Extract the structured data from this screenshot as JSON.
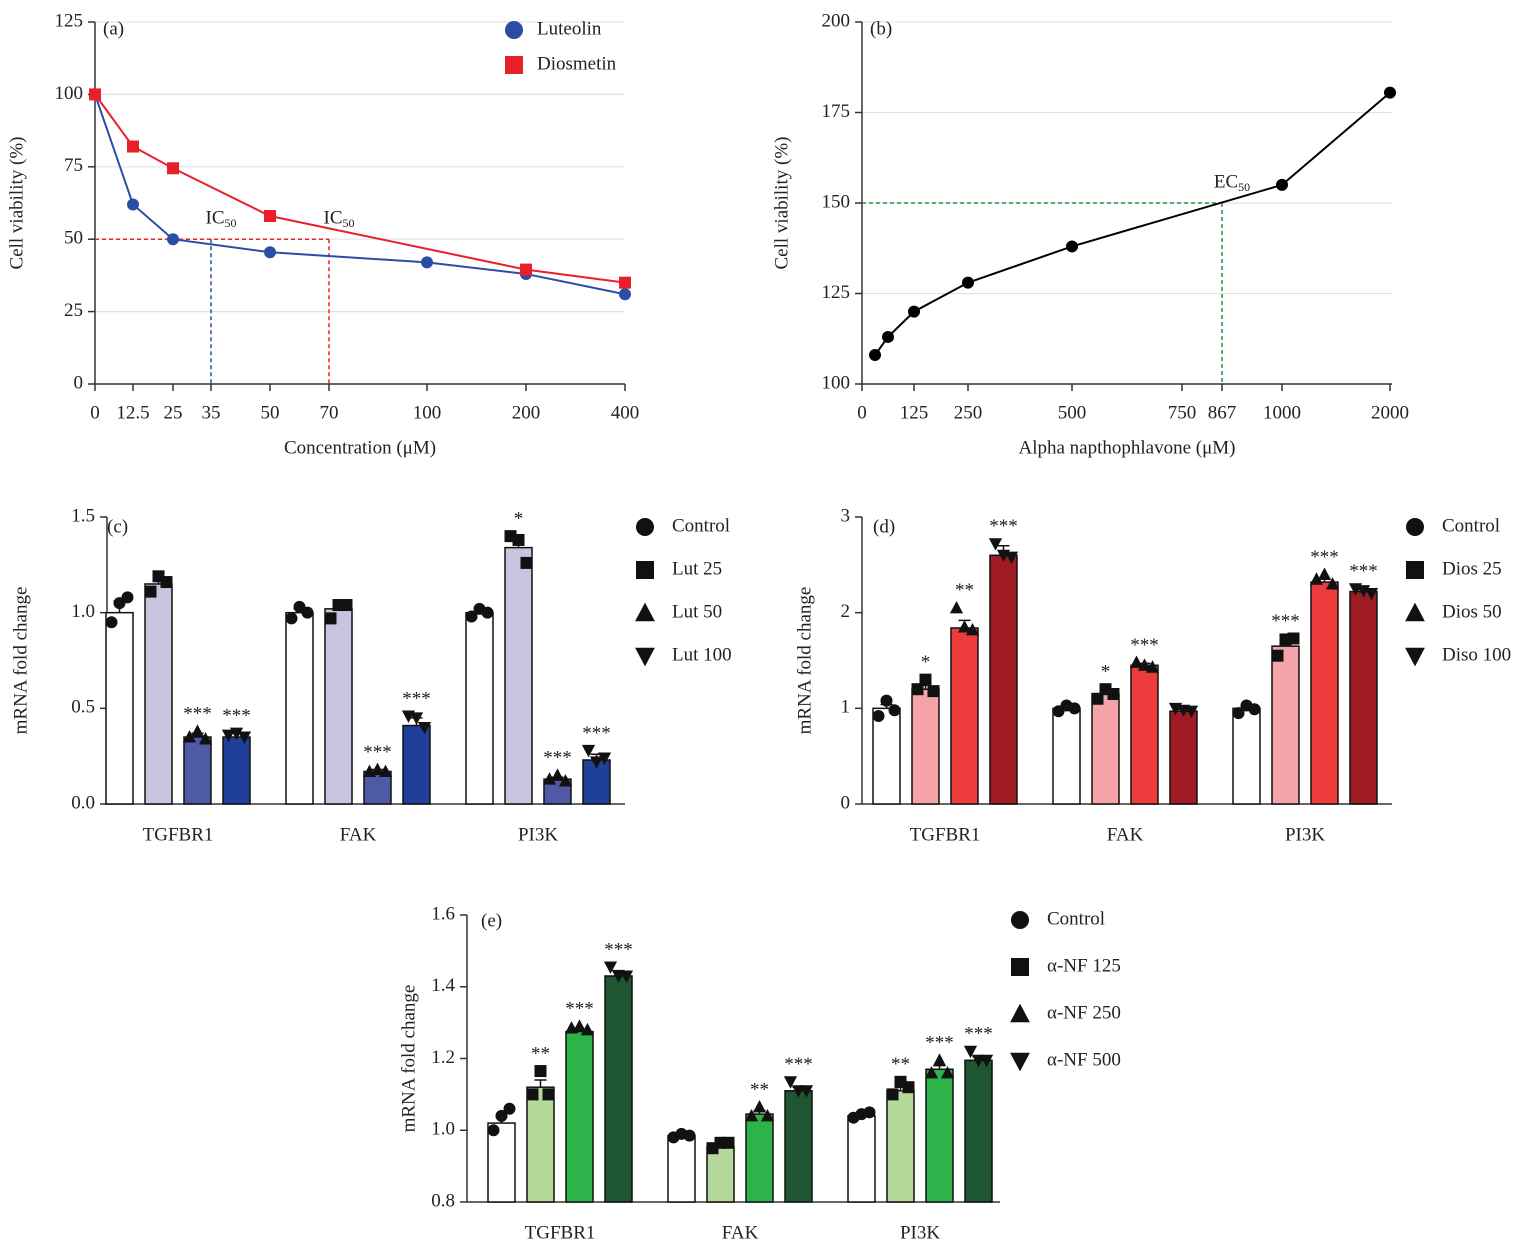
{
  "chart_data": [
    {
      "type": "line",
      "label": "(a)",
      "xlabel": "Concentration (μM)",
      "ylabel": "Cell viability (%)",
      "xlim": [
        0,
        400
      ],
      "xticks": [
        0,
        12.5,
        25,
        35,
        50,
        70,
        100,
        200,
        400
      ],
      "ylim": [
        0,
        125
      ],
      "yticks": [
        0,
        25,
        50,
        75,
        100,
        125
      ],
      "grid": true,
      "legend": "upper right",
      "series": [
        {
          "name": "Luteolin",
          "color": "#2a4ea6",
          "marker": "circle",
          "x": [
            0,
            12.5,
            25,
            50,
            100,
            200,
            400
          ],
          "values": [
            100,
            62,
            50,
            45.5,
            42,
            38,
            31
          ]
        },
        {
          "name": "Diosmetin",
          "color": "#e8202a",
          "marker": "square",
          "x": [
            0,
            12.5,
            25,
            50,
            200,
            400
          ],
          "values": [
            100,
            82,
            74.5,
            58,
            39.5,
            35
          ]
        }
      ],
      "annotations": [
        {
          "label": "IC",
          "sub": "50",
          "x": 35,
          "y": 50,
          "color": "#2a4ea6"
        },
        {
          "label": "IC",
          "sub": "50",
          "x": 70,
          "y": 50,
          "color": "#e8202a"
        }
      ]
    },
    {
      "type": "line",
      "label": "(b)",
      "xlabel": "Alpha napthophlavone (μM)",
      "ylabel": "Cell viability (%)",
      "xlim": [
        0,
        2000
      ],
      "xticks": [
        0,
        125,
        250,
        500,
        750,
        867,
        1000,
        2000
      ],
      "ylim": [
        100,
        200
      ],
      "yticks": [
        100,
        125,
        150,
        175,
        200
      ],
      "grid": true,
      "series": [
        {
          "color": "#000000",
          "marker": "circle",
          "x": [
            31.25,
            62.5,
            125,
            250,
            500,
            1000,
            2000
          ],
          "values": [
            108,
            113,
            120,
            128,
            138,
            155,
            180.5
          ]
        }
      ],
      "annotations": [
        {
          "label": "EC",
          "sub": "50",
          "x": 867,
          "y": 150,
          "color": "#1a9a3a"
        }
      ]
    },
    {
      "type": "bar",
      "label": "(c)",
      "ylabel": "mRNA fold change",
      "categories": [
        "TGFBR1",
        "FAK",
        "PI3K"
      ],
      "ylim": [
        0,
        1.5
      ],
      "yticks": [
        {
          "value": 0,
          "label": "0.0"
        },
        0.5,
        {
          "value": 1,
          "label": "1.0"
        },
        1.5
      ],
      "series": [
        {
          "name": "Control",
          "color": "#ffffff",
          "marker": "circle",
          "values": [
            1.0,
            1.0,
            1.0
          ],
          "errors": [
            0.06,
            0.02,
            0.02
          ],
          "points": [
            [
              0.95,
              1.05,
              1.08
            ],
            [
              0.97,
              1.03,
              1.0
            ],
            [
              0.98,
              1.02,
              1.0
            ]
          ],
          "stars": [
            null,
            null,
            null
          ]
        },
        {
          "name": "Lut 25",
          "color": "#c9c3e0",
          "marker": "square",
          "values": [
            1.15,
            1.02,
            1.34
          ],
          "errors": [
            0.03,
            0.03,
            0.05
          ],
          "points": [
            [
              1.11,
              1.19,
              1.16
            ],
            [
              0.97,
              1.04,
              1.04
            ],
            [
              1.4,
              1.38,
              1.26
            ]
          ],
          "stars": [
            null,
            null,
            "*"
          ]
        },
        {
          "name": "Lut 50",
          "color": "#4e5aa6",
          "marker": "triangle",
          "values": [
            0.35,
            0.17,
            0.13
          ],
          "errors": [
            0.02,
            0.01,
            0.01
          ],
          "points": [
            [
              0.35,
              0.38,
              0.34
            ],
            [
              0.17,
              0.18,
              0.17
            ],
            [
              0.13,
              0.15,
              0.12
            ]
          ],
          "stars": [
            "***",
            "***",
            "***"
          ]
        },
        {
          "name": "Lut 100",
          "color": "#1f3f99",
          "marker": "down",
          "values": [
            0.35,
            0.41,
            0.23
          ],
          "errors": [
            0.02,
            0.04,
            0.03
          ],
          "points": [
            [
              0.36,
              0.37,
              0.35
            ],
            [
              0.46,
              0.45,
              0.4
            ],
            [
              0.28,
              0.22,
              0.24
            ]
          ],
          "stars": [
            "***",
            "***",
            "***"
          ]
        }
      ]
    },
    {
      "type": "bar",
      "label": "(d)",
      "ylabel": "mRNA fold change",
      "categories": [
        "TGFBR1",
        "FAK",
        "PI3K"
      ],
      "ylim": [
        0,
        3
      ],
      "yticks": [
        0,
        1,
        2,
        3
      ],
      "series": [
        {
          "name": "Control",
          "color": "#ffffff",
          "marker": "circle",
          "values": [
            1.0,
            1.0,
            1.0
          ],
          "errors": [
            0.04,
            0.02,
            0.02
          ],
          "points": [
            [
              0.92,
              1.08,
              0.98
            ],
            [
              0.97,
              1.03,
              1.0
            ],
            [
              0.95,
              1.03,
              0.99
            ]
          ],
          "stars": [
            null,
            null,
            null
          ]
        },
        {
          "name": "Dios 25",
          "color": "#f4a3a8",
          "marker": "square",
          "values": [
            1.2,
            1.15,
            1.65
          ],
          "errors": [
            0.04,
            0.03,
            0.06
          ],
          "points": [
            [
              1.2,
              1.3,
              1.18
            ],
            [
              1.1,
              1.2,
              1.15
            ],
            [
              1.55,
              1.72,
              1.73
            ]
          ],
          "stars": [
            "*",
            "*",
            "***"
          ]
        },
        {
          "name": "Dios 50",
          "color": "#ee3b3b",
          "marker": "triangle",
          "values": [
            1.84,
            1.45,
            2.32
          ],
          "errors": [
            0.08,
            0.02,
            0.03
          ],
          "points": [
            [
              2.05,
              1.85,
              1.82
            ],
            [
              1.48,
              1.45,
              1.43
            ],
            [
              2.35,
              2.4,
              2.3
            ]
          ],
          "stars": [
            "**",
            "***",
            "***"
          ]
        },
        {
          "name": "Diso 100",
          "color": "#a01c24",
          "marker": "down",
          "values": [
            2.6,
            0.97,
            2.22
          ],
          "errors": [
            0.1,
            0.02,
            0.02
          ],
          "points": [
            [
              2.72,
              2.6,
              2.58
            ],
            [
              1.0,
              0.98,
              0.97
            ],
            [
              2.25,
              2.23,
              2.2
            ]
          ],
          "stars": [
            "***",
            null,
            "***"
          ]
        }
      ]
    },
    {
      "type": "bar",
      "label": "(e)",
      "ylabel": "mRNA fold change",
      "categories": [
        "TGFBR1",
        "FAK",
        "PI3K"
      ],
      "ylim": [
        0.8,
        1.6
      ],
      "yticks": [
        0.8,
        {
          "value": 1,
          "label": "1.0"
        },
        1.2,
        1.4,
        1.6
      ],
      "series": [
        {
          "name": "Control",
          "color": "#ffffff",
          "marker": "circle",
          "values": [
            1.02,
            0.985,
            1.04
          ],
          "errors": [
            0.02,
            0.005,
            0.005
          ],
          "points": [
            [
              1.0,
              1.04,
              1.06
            ],
            [
              0.98,
              0.99,
              0.985
            ],
            [
              1.035,
              1.045,
              1.05
            ]
          ],
          "stars": [
            null,
            null,
            null
          ]
        },
        {
          "name": "α-NF 125",
          "color": "#b4d99a",
          "marker": "square",
          "values": [
            1.12,
            0.955,
            1.11
          ],
          "errors": [
            0.02,
            0.005,
            0.01
          ],
          "points": [
            [
              1.1,
              1.165,
              1.1
            ],
            [
              0.95,
              0.965,
              0.965
            ],
            [
              1.1,
              1.135,
              1.12
            ]
          ],
          "stars": [
            "**",
            null,
            "**"
          ]
        },
        {
          "name": "α-NF 250",
          "color": "#2db34a",
          "marker": "triangle",
          "values": [
            1.275,
            1.045,
            1.17
          ],
          "errors": [
            0.005,
            0.01,
            0.01
          ],
          "points": [
            [
              1.285,
              1.29,
              1.28
            ],
            [
              1.04,
              1.065,
              1.04
            ],
            [
              1.16,
              1.195,
              1.16
            ]
          ],
          "stars": [
            "***",
            "**",
            "***"
          ]
        },
        {
          "name": "α-NF 500",
          "color": "#1e5631",
          "marker": "down",
          "values": [
            1.43,
            1.11,
            1.195
          ],
          "errors": [
            0.015,
            0.01,
            0.01
          ],
          "points": [
            [
              1.455,
              1.43,
              1.43
            ],
            [
              1.135,
              1.11,
              1.11
            ],
            [
              1.22,
              1.195,
              1.195
            ]
          ],
          "stars": [
            "***",
            "***",
            "***"
          ]
        }
      ]
    }
  ]
}
